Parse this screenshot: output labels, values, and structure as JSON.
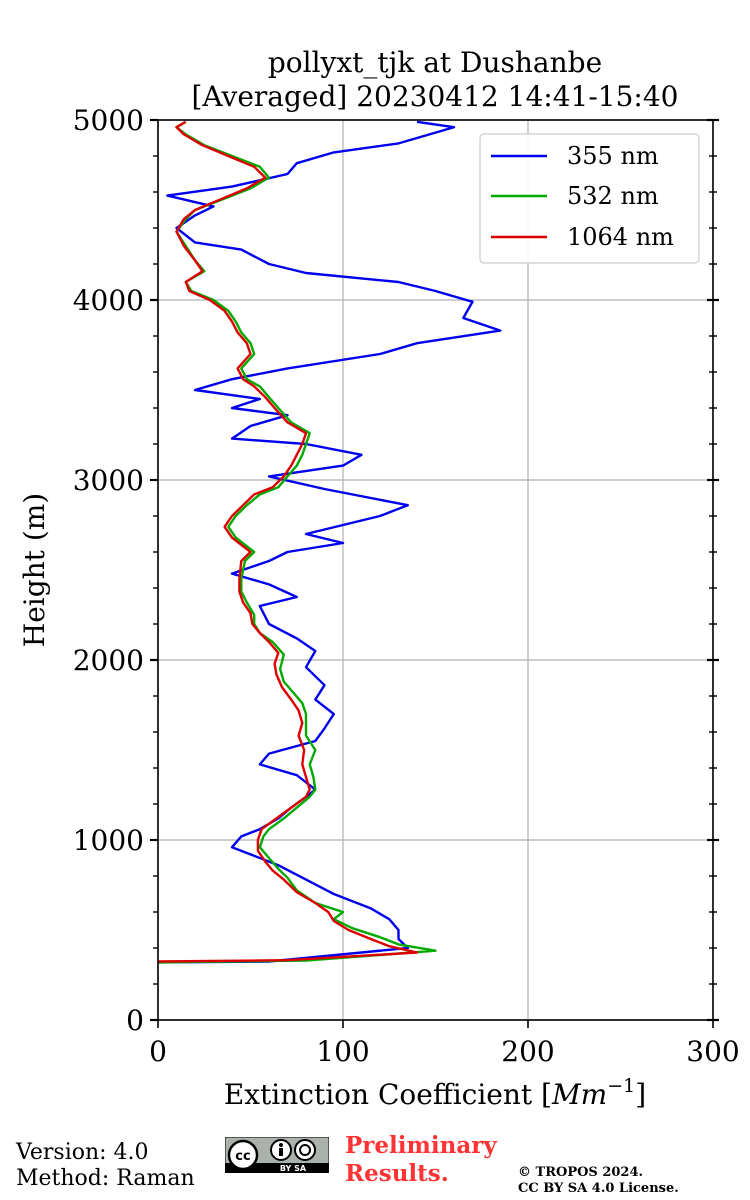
{
  "chart_data": {
    "type": "line",
    "title": "pollyxt_tjk at Dushanbe",
    "subtitle": "[Averaged] 20230412 14:41-15:40",
    "xlabel": "Extinction Coefficient [Mm⁻¹]",
    "ylabel": "Height (m)",
    "xlim": [
      0,
      300
    ],
    "ylim": [
      0,
      5000
    ],
    "xticks": [
      "0",
      "100",
      "200",
      "300"
    ],
    "yticks": [
      "0",
      "1000",
      "2000",
      "3000",
      "4000",
      "5000"
    ],
    "grid": true,
    "legend_position": "top-right",
    "series": [
      {
        "name": "355 nm",
        "color": "#0000ee",
        "points": [
          [
            0,
            320
          ],
          [
            60,
            325
          ],
          [
            135,
            400
          ],
          [
            130,
            450
          ],
          [
            130,
            500
          ],
          [
            125,
            560
          ],
          [
            115,
            620
          ],
          [
            95,
            700
          ],
          [
            80,
            780
          ],
          [
            65,
            860
          ],
          [
            50,
            920
          ],
          [
            40,
            960
          ],
          [
            45,
            1020
          ],
          [
            55,
            1060
          ],
          [
            65,
            1120
          ],
          [
            72,
            1180
          ],
          [
            80,
            1240
          ],
          [
            85,
            1280
          ],
          [
            75,
            1360
          ],
          [
            55,
            1420
          ],
          [
            60,
            1480
          ],
          [
            85,
            1550
          ],
          [
            90,
            1620
          ],
          [
            95,
            1700
          ],
          [
            85,
            1780
          ],
          [
            90,
            1860
          ],
          [
            80,
            1960
          ],
          [
            85,
            2050
          ],
          [
            75,
            2120
          ],
          [
            60,
            2200
          ],
          [
            55,
            2300
          ],
          [
            75,
            2350
          ],
          [
            60,
            2420
          ],
          [
            40,
            2480
          ],
          [
            60,
            2550
          ],
          [
            70,
            2600
          ],
          [
            100,
            2650
          ],
          [
            80,
            2700
          ],
          [
            120,
            2800
          ],
          [
            135,
            2860
          ],
          [
            90,
            2950
          ],
          [
            60,
            3020
          ],
          [
            100,
            3080
          ],
          [
            110,
            3140
          ],
          [
            80,
            3200
          ],
          [
            40,
            3230
          ],
          [
            50,
            3300
          ],
          [
            70,
            3360
          ],
          [
            40,
            3400
          ],
          [
            55,
            3450
          ],
          [
            20,
            3500
          ],
          [
            40,
            3560
          ],
          [
            70,
            3620
          ],
          [
            120,
            3700
          ],
          [
            140,
            3760
          ],
          [
            185,
            3830
          ],
          [
            165,
            3900
          ],
          [
            170,
            3990
          ],
          [
            150,
            4050
          ],
          [
            130,
            4100
          ],
          [
            80,
            4150
          ],
          [
            60,
            4200
          ],
          [
            45,
            4280
          ],
          [
            20,
            4320
          ],
          [
            10,
            4400
          ],
          [
            20,
            4470
          ],
          [
            30,
            4520
          ],
          [
            5,
            4580
          ],
          [
            40,
            4630
          ],
          [
            70,
            4700
          ],
          [
            75,
            4760
          ],
          [
            95,
            4820
          ],
          [
            130,
            4870
          ],
          [
            150,
            4930
          ],
          [
            160,
            4960
          ],
          [
            140,
            4990
          ]
        ]
      },
      {
        "name": "532 nm",
        "color": "#00aa00",
        "points": [
          [
            0,
            320
          ],
          [
            80,
            330
          ],
          [
            150,
            385
          ],
          [
            130,
            420
          ],
          [
            120,
            460
          ],
          [
            105,
            510
          ],
          [
            95,
            560
          ],
          [
            100,
            600
          ],
          [
            85,
            650
          ],
          [
            75,
            720
          ],
          [
            70,
            790
          ],
          [
            65,
            840
          ],
          [
            60,
            900
          ],
          [
            55,
            960
          ],
          [
            57,
            1020
          ],
          [
            60,
            1060
          ],
          [
            68,
            1120
          ],
          [
            75,
            1180
          ],
          [
            82,
            1240
          ],
          [
            85,
            1280
          ],
          [
            84,
            1350
          ],
          [
            82,
            1420
          ],
          [
            85,
            1500
          ],
          [
            80,
            1580
          ],
          [
            80,
            1650
          ],
          [
            80,
            1700
          ],
          [
            78,
            1760
          ],
          [
            73,
            1820
          ],
          [
            68,
            1880
          ],
          [
            66,
            1950
          ],
          [
            68,
            2030
          ],
          [
            62,
            2100
          ],
          [
            55,
            2150
          ],
          [
            52,
            2200
          ],
          [
            52,
            2250
          ],
          [
            48,
            2320
          ],
          [
            45,
            2380
          ],
          [
            45,
            2450
          ],
          [
            47,
            2550
          ],
          [
            52,
            2600
          ],
          [
            42,
            2680
          ],
          [
            38,
            2740
          ],
          [
            42,
            2800
          ],
          [
            48,
            2860
          ],
          [
            55,
            2920
          ],
          [
            65,
            2960
          ],
          [
            70,
            3020
          ],
          [
            75,
            3080
          ],
          [
            78,
            3140
          ],
          [
            80,
            3200
          ],
          [
            82,
            3260
          ],
          [
            72,
            3320
          ],
          [
            65,
            3400
          ],
          [
            60,
            3460
          ],
          [
            55,
            3520
          ],
          [
            48,
            3560
          ],
          [
            45,
            3620
          ],
          [
            52,
            3700
          ],
          [
            50,
            3760
          ],
          [
            45,
            3820
          ],
          [
            42,
            3880
          ],
          [
            38,
            3940
          ],
          [
            30,
            4000
          ],
          [
            18,
            4050
          ],
          [
            15,
            4100
          ],
          [
            25,
            4160
          ],
          [
            20,
            4220
          ],
          [
            15,
            4300
          ],
          [
            10,
            4380
          ],
          [
            15,
            4450
          ],
          [
            20,
            4500
          ],
          [
            35,
            4560
          ],
          [
            50,
            4620
          ],
          [
            60,
            4680
          ],
          [
            55,
            4740
          ],
          [
            40,
            4800
          ],
          [
            25,
            4860
          ],
          [
            15,
            4920
          ],
          [
            10,
            4960
          ],
          [
            15,
            4990
          ]
        ]
      },
      {
        "name": "1064 nm",
        "color": "#dd0000",
        "points": [
          [
            0,
            325
          ],
          [
            70,
            332
          ],
          [
            140,
            375
          ],
          [
            125,
            410
          ],
          [
            115,
            450
          ],
          [
            103,
            500
          ],
          [
            95,
            550
          ],
          [
            92,
            600
          ],
          [
            85,
            650
          ],
          [
            75,
            710
          ],
          [
            68,
            780
          ],
          [
            62,
            830
          ],
          [
            58,
            880
          ],
          [
            54,
            940
          ],
          [
            54,
            1000
          ],
          [
            56,
            1060
          ],
          [
            64,
            1120
          ],
          [
            72,
            1180
          ],
          [
            80,
            1240
          ],
          [
            82,
            1280
          ],
          [
            80,
            1350
          ],
          [
            78,
            1420
          ],
          [
            79,
            1500
          ],
          [
            76,
            1580
          ],
          [
            78,
            1650
          ],
          [
            76,
            1720
          ],
          [
            72,
            1780
          ],
          [
            67,
            1850
          ],
          [
            64,
            1920
          ],
          [
            63,
            1980
          ],
          [
            65,
            2040
          ],
          [
            60,
            2100
          ],
          [
            55,
            2150
          ],
          [
            51,
            2200
          ],
          [
            50,
            2260
          ],
          [
            46,
            2320
          ],
          [
            44,
            2380
          ],
          [
            44,
            2450
          ],
          [
            45,
            2550
          ],
          [
            50,
            2600
          ],
          [
            40,
            2680
          ],
          [
            36,
            2740
          ],
          [
            40,
            2800
          ],
          [
            46,
            2860
          ],
          [
            52,
            2920
          ],
          [
            62,
            2960
          ],
          [
            68,
            3020
          ],
          [
            72,
            3080
          ],
          [
            75,
            3140
          ],
          [
            78,
            3200
          ],
          [
            80,
            3260
          ],
          [
            70,
            3320
          ],
          [
            63,
            3400
          ],
          [
            58,
            3460
          ],
          [
            52,
            3520
          ],
          [
            46,
            3560
          ],
          [
            43,
            3620
          ],
          [
            50,
            3700
          ],
          [
            48,
            3760
          ],
          [
            43,
            3820
          ],
          [
            40,
            3880
          ],
          [
            36,
            3940
          ],
          [
            28,
            4000
          ],
          [
            17,
            4050
          ],
          [
            15,
            4100
          ],
          [
            24,
            4160
          ],
          [
            20,
            4220
          ],
          [
            14,
            4300
          ],
          [
            10,
            4380
          ],
          [
            14,
            4450
          ],
          [
            20,
            4500
          ],
          [
            34,
            4560
          ],
          [
            48,
            4620
          ],
          [
            58,
            4680
          ],
          [
            52,
            4740
          ],
          [
            38,
            4800
          ],
          [
            24,
            4860
          ],
          [
            14,
            4920
          ],
          [
            10,
            4960
          ],
          [
            15,
            4990
          ]
        ]
      }
    ]
  },
  "footer": {
    "version": "Version: 4.0",
    "method": "Method: Raman",
    "preliminary_line1": "Preliminary",
    "preliminary_line2": "Results.",
    "copyright_line1": "© TROPOS 2024.",
    "copyright_line2": "CC BY SA 4.0 License.",
    "badge_label": "BY SA"
  }
}
